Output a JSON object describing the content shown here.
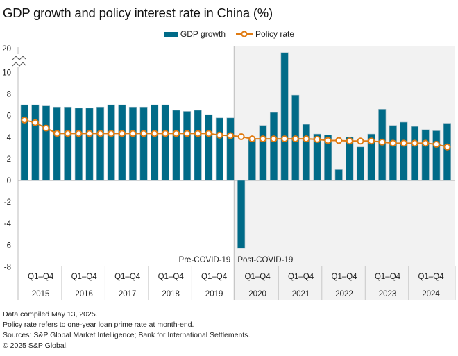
{
  "colors": {
    "gdp_bar": "#006b88",
    "gdp_bar_edge": "#9ab8c4",
    "policy_line": "#e07b12",
    "policy_marker_fill": "#ffffff",
    "post_covid_bg": "#f2f2f2",
    "axis": "#c8c8c8"
  },
  "chart_data": {
    "type": "bar",
    "title": "GDP growth and policy interest rate in China (%)",
    "xlabel": "",
    "ylabel": "",
    "ylim": [
      -8,
      20
    ],
    "axis_break": {
      "from": 10,
      "to": 20
    },
    "yticks": [
      20,
      10,
      8,
      6,
      4,
      2,
      0,
      -2,
      -4,
      -6,
      -8
    ],
    "ytick_labels": [
      "20",
      "10",
      "8",
      "6",
      "4",
      "2",
      "0",
      "-2",
      "-4",
      "-6",
      "-8"
    ],
    "grid": false,
    "legend": {
      "position": "top-center",
      "entries": [
        "GDP growth",
        "Policy rate"
      ]
    },
    "categories": [
      "2015 Q1",
      "2015 Q2",
      "2015 Q3",
      "2015 Q4",
      "2016 Q1",
      "2016 Q2",
      "2016 Q3",
      "2016 Q4",
      "2017 Q1",
      "2017 Q2",
      "2017 Q3",
      "2017 Q4",
      "2018 Q1",
      "2018 Q2",
      "2018 Q3",
      "2018 Q4",
      "2019 Q1",
      "2019 Q2",
      "2019 Q3",
      "2019 Q4",
      "2020 Q1",
      "2020 Q2",
      "2020 Q3",
      "2020 Q4",
      "2021 Q1",
      "2021 Q2",
      "2021 Q3",
      "2021 Q4",
      "2022 Q1",
      "2022 Q2",
      "2022 Q3",
      "2022 Q4",
      "2023 Q1",
      "2023 Q2",
      "2023 Q3",
      "2023 Q4",
      "2024 Q1",
      "2024 Q2",
      "2024 Q3",
      "2024 Q4"
    ],
    "series": [
      {
        "name": "GDP growth",
        "type": "bar",
        "values": [
          7.0,
          7.0,
          6.9,
          6.8,
          6.8,
          6.7,
          6.7,
          6.8,
          7.0,
          7.0,
          6.8,
          6.8,
          7.0,
          7.0,
          6.5,
          6.4,
          6.5,
          6.1,
          5.8,
          5.8,
          -6.3,
          3.8,
          5.1,
          6.3,
          18.3,
          7.9,
          5.2,
          4.3,
          4.2,
          1.0,
          4.0,
          3.1,
          4.3,
          6.6,
          5.1,
          5.4,
          5.0,
          4.7,
          4.6,
          5.3
        ]
      },
      {
        "name": "Policy rate",
        "type": "line",
        "values": [
          5.6,
          5.35,
          4.85,
          4.35,
          4.35,
          4.35,
          4.35,
          4.35,
          4.35,
          4.35,
          4.35,
          4.35,
          4.35,
          4.35,
          4.35,
          4.35,
          4.35,
          4.35,
          4.2,
          4.15,
          4.05,
          3.85,
          3.85,
          3.85,
          3.85,
          3.85,
          3.85,
          3.8,
          3.7,
          3.7,
          3.65,
          3.65,
          3.65,
          3.55,
          3.45,
          3.45,
          3.45,
          3.45,
          3.35,
          3.1
        ]
      }
    ],
    "periods": [
      {
        "label": "Pre-COVID-19",
        "start_index": 0,
        "end_index": 19
      },
      {
        "label": "Post-COVID-19",
        "start_index": 20,
        "end_index": 39
      }
    ],
    "year_groups": [
      {
        "quarters": "Q1–Q4",
        "year": "2015"
      },
      {
        "quarters": "Q1–Q4",
        "year": "2016"
      },
      {
        "quarters": "Q1–Q4",
        "year": "2017"
      },
      {
        "quarters": "Q1–Q4",
        "year": "2018"
      },
      {
        "quarters": "Q1–Q4",
        "year": "2019"
      },
      {
        "quarters": "Q1–Q4",
        "year": "2020"
      },
      {
        "quarters": "Q1–Q4",
        "year": "2021"
      },
      {
        "quarters": "Q1–Q4",
        "year": "2022"
      },
      {
        "quarters": "Q1–Q4",
        "year": "2023"
      },
      {
        "quarters": "Q1–Q4",
        "year": "2024"
      }
    ]
  },
  "footnotes": [
    "Data compiled May 13, 2025.",
    "Policy rate refers to one-year loan prime rate at month-end.",
    "Sources: S&P Global Market Intelligence; Bank for International Settlements.",
    "© 2025 S&P Global."
  ]
}
